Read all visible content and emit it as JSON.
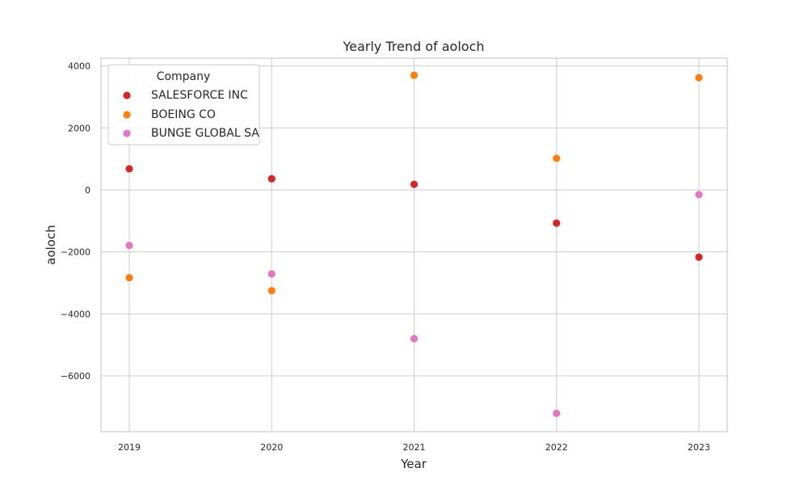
{
  "chart_data": {
    "type": "scatter",
    "title": "Yearly Trend of aoloch",
    "xlabel": "Year",
    "ylabel": "aoloch",
    "categories": [
      "2019",
      "2020",
      "2021",
      "2022",
      "2023"
    ],
    "ylim": [
      -7800,
      4250
    ],
    "yticks": [
      -6000,
      -4000,
      -2000,
      0,
      2000,
      4000
    ],
    "ytick_labels": [
      "−6000",
      "−4000",
      "−2000",
      "0",
      "2000",
      "4000"
    ],
    "grid": true,
    "legend": {
      "title": "Company",
      "placement": "top-left"
    },
    "series": [
      {
        "name": "SALESFORCE INC",
        "color": "#d62728",
        "values": [
          680,
          360,
          180,
          -1070,
          -2170
        ]
      },
      {
        "name": "BOEING CO",
        "color": "#ff7f0e",
        "values": [
          -2830,
          -3250,
          3700,
          1020,
          3620
        ]
      },
      {
        "name": "BUNGE GLOBAL SA",
        "color": "#e377c2",
        "values": [
          -1790,
          -2710,
          -4800,
          -7210,
          -150
        ]
      }
    ]
  }
}
